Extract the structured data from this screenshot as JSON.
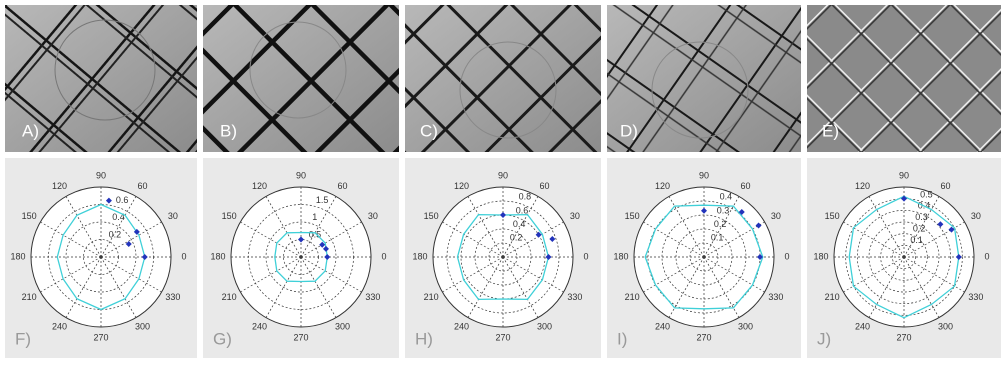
{
  "photos": [
    {
      "label": "A)"
    },
    {
      "label": "B)"
    },
    {
      "label": "C)"
    },
    {
      "label": "D)"
    },
    {
      "label": "E)"
    }
  ],
  "chart_data": [
    {
      "type": "polar",
      "label": "F)",
      "rlim": [
        0,
        0.8
      ],
      "rticks": [
        0.2,
        0.4,
        0.6
      ],
      "thetaticks": [
        0,
        30,
        60,
        90,
        120,
        150,
        180,
        210,
        240,
        270,
        300,
        330
      ],
      "series": [
        {
          "color": "#3fd0d8",
          "style": "line",
          "theta": [
            0,
            30,
            60,
            90,
            120,
            150,
            180,
            210,
            240,
            270,
            300,
            330
          ],
          "values": [
            0.5,
            0.5,
            0.55,
            0.6,
            0.55,
            0.5,
            0.5,
            0.5,
            0.55,
            0.6,
            0.55,
            0.5
          ]
        },
        {
          "color": "#2233bb",
          "style": "marker",
          "theta": [
            0,
            25,
            35,
            82
          ],
          "values": [
            0.5,
            0.35,
            0.5,
            0.65
          ]
        }
      ]
    },
    {
      "type": "polar",
      "label": "G)",
      "rlim": [
        0,
        2
      ],
      "rticks": [
        0.5,
        1,
        1.5
      ],
      "thetaticks": [
        0,
        30,
        60,
        90,
        120,
        150,
        180,
        210,
        240,
        270,
        300,
        330
      ],
      "series": [
        {
          "color": "#3fd0d8",
          "style": "line",
          "theta": [
            0,
            30,
            60,
            90,
            120,
            150,
            180,
            210,
            240,
            270,
            300,
            330
          ],
          "values": [
            0.75,
            0.8,
            0.8,
            0.7,
            0.8,
            0.8,
            0.75,
            0.8,
            0.8,
            0.7,
            0.8,
            0.8
          ]
        },
        {
          "color": "#2233bb",
          "style": "marker",
          "theta": [
            0,
            18,
            30,
            90
          ],
          "values": [
            0.75,
            0.75,
            0.7,
            0.5
          ]
        }
      ]
    },
    {
      "type": "polar",
      "label": "H)",
      "rlim": [
        0,
        1
      ],
      "rticks": [
        0.2,
        0.4,
        0.6,
        0.8
      ],
      "thetaticks": [
        0,
        30,
        60,
        90,
        120,
        150,
        180,
        210,
        240,
        270,
        300,
        330
      ],
      "series": [
        {
          "color": "#3fd0d8",
          "style": "line",
          "theta": [
            0,
            30,
            60,
            90,
            120,
            150,
            180,
            210,
            240,
            270,
            300,
            330
          ],
          "values": [
            0.65,
            0.65,
            0.7,
            0.6,
            0.7,
            0.65,
            0.65,
            0.65,
            0.7,
            0.6,
            0.7,
            0.65
          ]
        },
        {
          "color": "#2233bb",
          "style": "marker",
          "theta": [
            0,
            20,
            32,
            90
          ],
          "values": [
            0.65,
            0.75,
            0.6,
            0.6
          ]
        }
      ]
    },
    {
      "type": "polar",
      "label": "I)",
      "rlim": [
        0,
        0.5
      ],
      "rticks": [
        0.1,
        0.2,
        0.3,
        0.4
      ],
      "thetaticks": [
        0,
        30,
        60,
        90,
        120,
        150,
        180,
        210,
        240,
        270,
        300,
        330
      ],
      "series": [
        {
          "color": "#3fd0d8",
          "style": "line",
          "theta": [
            0,
            30,
            60,
            90,
            120,
            150,
            180,
            210,
            240,
            270,
            300,
            330
          ],
          "values": [
            0.42,
            0.4,
            0.42,
            0.37,
            0.42,
            0.4,
            0.42,
            0.4,
            0.42,
            0.37,
            0.42,
            0.4
          ]
        },
        {
          "color": "#2233bb",
          "style": "marker",
          "theta": [
            0,
            30,
            50,
            90
          ],
          "values": [
            0.4,
            0.45,
            0.42,
            0.33
          ]
        }
      ]
    },
    {
      "type": "polar",
      "label": "J)",
      "rlim": [
        0,
        0.6
      ],
      "rticks": [
        0.1,
        0.2,
        0.3,
        0.4,
        0.5
      ],
      "thetaticks": [
        0,
        30,
        60,
        90,
        120,
        150,
        180,
        210,
        240,
        270,
        300,
        330
      ],
      "series": [
        {
          "color": "#3fd0d8",
          "style": "line",
          "theta": [
            0,
            30,
            60,
            90,
            120,
            150,
            180,
            210,
            240,
            270,
            300,
            330
          ],
          "values": [
            0.47,
            0.5,
            0.47,
            0.52,
            0.47,
            0.5,
            0.47,
            0.5,
            0.47,
            0.52,
            0.47,
            0.5
          ]
        },
        {
          "color": "#2233bb",
          "style": "marker",
          "theta": [
            0,
            30,
            42,
            90
          ],
          "values": [
            0.47,
            0.47,
            0.42,
            0.5
          ]
        }
      ]
    }
  ]
}
